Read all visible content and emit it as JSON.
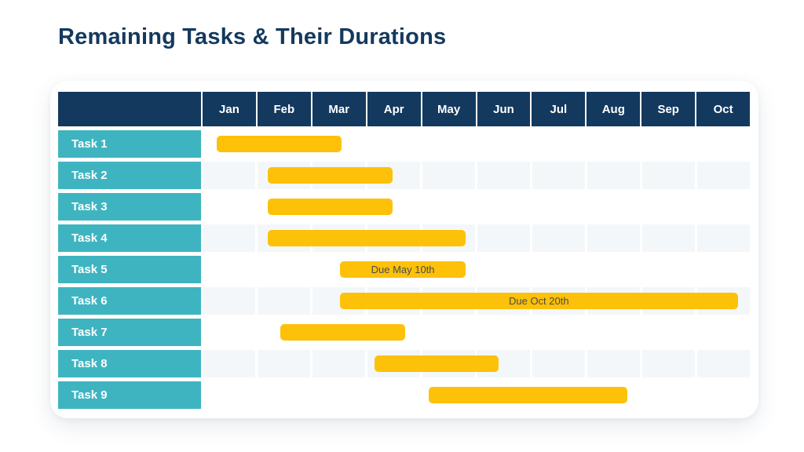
{
  "title": "Remaining Tasks & Their Durations",
  "colors": {
    "navy": "#14395E",
    "teal": "#3FB4C1",
    "bar_yellow": "#FDC10A",
    "row_stripe": "#F3F7F9",
    "bar_note_text": "#474C4F",
    "title_text": "#14395E",
    "card_bg": "#FFFFFF"
  },
  "months": [
    "Jan",
    "Feb",
    "Mar",
    "Apr",
    "May",
    "Jun",
    "Jul",
    "Aug",
    "Sep",
    "Oct"
  ],
  "tasks": [
    {
      "label": "Task 1",
      "start": 0.26,
      "end": 2.54,
      "note": ""
    },
    {
      "label": "Task 2",
      "start": 1.19,
      "end": 3.47,
      "note": ""
    },
    {
      "label": "Task 3",
      "start": 1.19,
      "end": 3.47,
      "note": ""
    },
    {
      "label": "Task 4",
      "start": 1.19,
      "end": 4.81,
      "note": ""
    },
    {
      "label": "Task 5",
      "start": 2.51,
      "end": 4.81,
      "note": "Due May 10th"
    },
    {
      "label": "Task 6",
      "start": 2.51,
      "end": 9.78,
      "note": "Due Oct 20th"
    },
    {
      "label": "Task 7",
      "start": 1.42,
      "end": 3.7,
      "note": ""
    },
    {
      "label": "Task 8",
      "start": 3.14,
      "end": 5.41,
      "note": ""
    },
    {
      "label": "Task 9",
      "start": 4.13,
      "end": 7.76,
      "note": ""
    }
  ],
  "chart_data": {
    "type": "bar",
    "variant": "gantt",
    "title": "Remaining Tasks & Their Durations",
    "xlabel": "",
    "ylabel": "",
    "x_axis": {
      "unit": "months",
      "tick_labels": [
        "Jan",
        "Feb",
        "Mar",
        "Apr",
        "May",
        "Jun",
        "Jul",
        "Aug",
        "Sep",
        "Oct"
      ],
      "range": [
        0,
        10
      ],
      "note": "0 = start of Jan, 10 = end of Oct; bar values are fractional month positions"
    },
    "categories": [
      "Task 1",
      "Task 2",
      "Task 3",
      "Task 4",
      "Task 5",
      "Task 6",
      "Task 7",
      "Task 8",
      "Task 9"
    ],
    "series": [
      {
        "name": "Task duration",
        "bars": [
          {
            "task": "Task 1",
            "start_month": 0.26,
            "end_month": 2.54,
            "approx": "early Jan to mid Mar"
          },
          {
            "task": "Task 2",
            "start_month": 1.19,
            "end_month": 3.47,
            "approx": "early Feb to mid Apr"
          },
          {
            "task": "Task 3",
            "start_month": 1.19,
            "end_month": 3.47,
            "approx": "early Feb to mid Apr"
          },
          {
            "task": "Task 4",
            "start_month": 1.19,
            "end_month": 4.81,
            "approx": "early Feb to late May"
          },
          {
            "task": "Task 5",
            "start_month": 2.51,
            "end_month": 4.81,
            "approx": "mid Mar to late May",
            "label": "Due May 10th"
          },
          {
            "task": "Task 6",
            "start_month": 2.51,
            "end_month": 9.78,
            "approx": "mid Mar to late Oct",
            "label": "Due Oct 20th"
          },
          {
            "task": "Task 7",
            "start_month": 1.42,
            "end_month": 3.7,
            "approx": "mid Feb to late Apr"
          },
          {
            "task": "Task 8",
            "start_month": 3.14,
            "end_month": 5.41,
            "approx": "early Apr to mid Jun"
          },
          {
            "task": "Task 9",
            "start_month": 4.13,
            "end_month": 7.76,
            "approx": "early May to late Aug"
          }
        ]
      }
    ],
    "annotations": [
      {
        "task": "Task 5",
        "text": "Due May 10th",
        "position": "centered on bar"
      },
      {
        "task": "Task 6",
        "text": "Due Oct 20th",
        "position": "centered on bar"
      }
    ],
    "legend": "none",
    "grid": "alternating rows striped with light blue month cells",
    "bar_color": "#FDC10A"
  }
}
